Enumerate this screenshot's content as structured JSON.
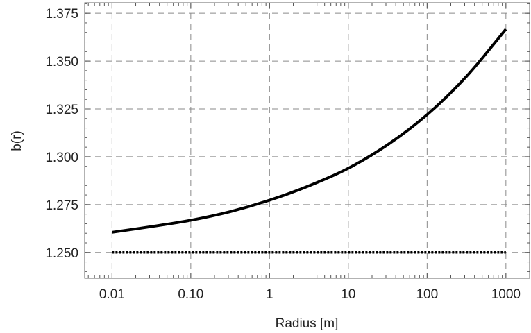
{
  "chart_data": {
    "type": "line",
    "xlabel": "Radius [m]",
    "ylabel": "b(r)",
    "xscale": "log",
    "xlim": [
      0.0045,
      2000
    ],
    "ylim": [
      1.2365,
      1.3805
    ],
    "x_ticks": [
      0.01,
      0.1,
      1,
      10,
      100,
      1000
    ],
    "x_tick_labels": [
      "0.01",
      "0.10",
      "1",
      "10",
      "100",
      "1000"
    ],
    "y_ticks": [
      1.25,
      1.275,
      1.3,
      1.325,
      1.35,
      1.375
    ],
    "y_tick_labels": [
      "1.250",
      "1.275",
      "1.300",
      "1.325",
      "1.350",
      "1.375"
    ],
    "grid": true,
    "legend": "none",
    "series": [
      {
        "style": "solid",
        "color": "#000000",
        "x": [
          0.01,
          0.0316,
          0.1,
          0.316,
          1,
          3.16,
          10,
          31.6,
          100,
          316,
          1000
        ],
        "y": [
          1.2605,
          1.2635,
          1.2668,
          1.2713,
          1.2773,
          1.2848,
          1.294,
          1.3063,
          1.322,
          1.342,
          1.3667
        ]
      },
      {
        "style": "dotted",
        "color": "#000000",
        "x": [
          0.01,
          1000
        ],
        "y": [
          1.25,
          1.25
        ]
      }
    ]
  }
}
